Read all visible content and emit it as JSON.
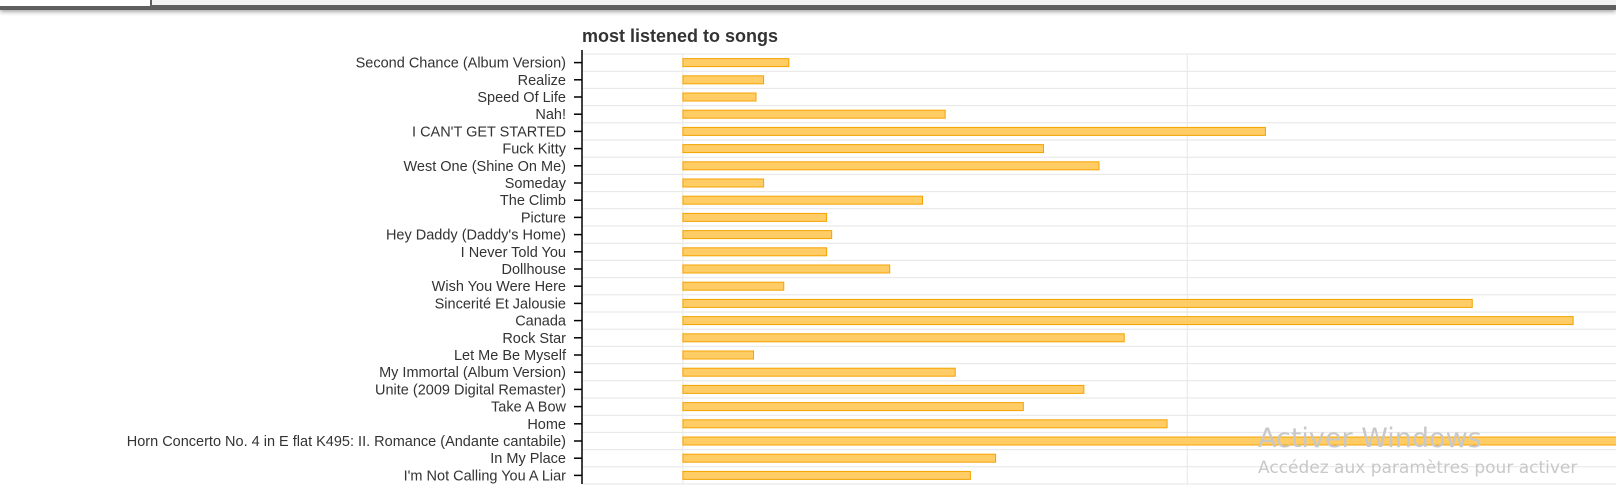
{
  "window": {
    "watermark_title": "Activer Windows",
    "watermark_subtitle": "Accédez aux paramètres pour activer"
  },
  "colors": {
    "bar_fill": "#ffcc66",
    "bar_stroke": "#f4a300",
    "grid": "#e6e6e6",
    "axis": "#000000",
    "text": "#333333"
  },
  "chart_data": {
    "type": "bar",
    "orientation": "horizontal",
    "title": "most listened to songs",
    "xlabel": "",
    "ylabel": "",
    "grid": true,
    "categories": [
      "Second Chance (Album Version)",
      "Realize",
      "Speed Of Life",
      "Nah!",
      "I CAN'T GET STARTED",
      "Fuck Kitty",
      "West One (Shine On Me)",
      "Someday",
      "The Climb",
      "Picture",
      "Hey Daddy (Daddy's Home)",
      "I Never Told You",
      "Dollhouse",
      "Wish You Were Here",
      "Sincerité Et Jalousie",
      "Canada",
      "Rock Star",
      "Let Me Be Myself",
      "My Immortal (Album Version)",
      "Unite (2009 Digital Remaster)",
      "Take A Bow",
      "Home",
      "Horn Concerto No. 4 in E flat K495: II. Romance (Andante cantabile)",
      "In My Place",
      "I'm Not Calling You A Liar"
    ],
    "values": [
      21,
      16,
      14.5,
      52,
      115.5,
      71.5,
      82.5,
      16,
      47.5,
      28.5,
      29.5,
      28.5,
      41,
      20,
      156.5,
      176.5,
      87.5,
      14,
      54,
      79.5,
      67.5,
      96,
      195,
      62,
      57
    ],
    "xlim": [
      -20,
      185
    ]
  }
}
